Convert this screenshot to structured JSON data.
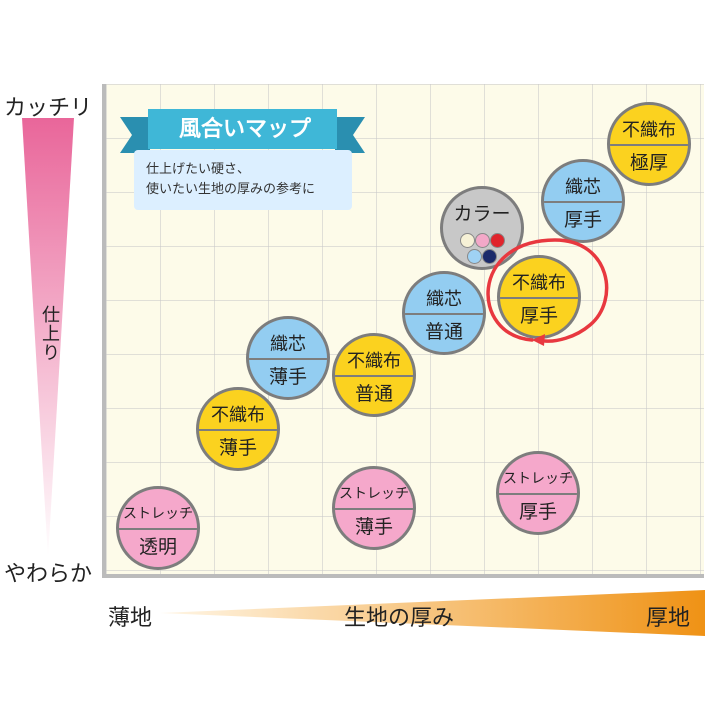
{
  "y_axis": {
    "top_label": "カッチリ",
    "middle_label": "仕上り",
    "bottom_label": "やわらか",
    "gradient_colors": [
      "#e9669a",
      "#ffffff"
    ]
  },
  "x_axis": {
    "left_label": "薄地",
    "middle_label": "生地の厚み",
    "right_label": "厚地",
    "gradient_colors": [
      "#fff6e6",
      "#ef9215"
    ]
  },
  "title": {
    "text": "風合いマップ",
    "ribbon_color": "#3fb7d7"
  },
  "note": {
    "line1": "仕上げたい硬さ、",
    "line2": "使いたい生地の厚みの参考に"
  },
  "colors": {
    "nonwoven": "#fbd21f",
    "woven": "#93cdf1",
    "stretch": "#f5a8cb",
    "color_bubble": "#c8c8c8",
    "highlight_circle": "#e8383f"
  },
  "bubbles": [
    {
      "id": "nonwoven-extra-thick",
      "top": "不織布",
      "bottom": "極厚",
      "kind": "nonwoven"
    },
    {
      "id": "woven-thick",
      "top": "織芯",
      "bottom": "厚手",
      "kind": "woven"
    },
    {
      "id": "nonwoven-thick",
      "top": "不織布",
      "bottom": "厚手",
      "kind": "nonwoven"
    },
    {
      "id": "woven-normal",
      "top": "織芯",
      "bottom": "普通",
      "kind": "woven"
    },
    {
      "id": "woven-thin",
      "top": "織芯",
      "bottom": "薄手",
      "kind": "woven"
    },
    {
      "id": "nonwoven-normal",
      "top": "不織布",
      "bottom": "普通",
      "kind": "nonwoven"
    },
    {
      "id": "nonwoven-thin",
      "top": "不織布",
      "bottom": "薄手",
      "kind": "nonwoven"
    },
    {
      "id": "stretch-clear",
      "top": "ストレッチ",
      "bottom": "透明",
      "kind": "stretch"
    },
    {
      "id": "stretch-thin",
      "top": "ストレッチ",
      "bottom": "薄手",
      "kind": "stretch"
    },
    {
      "id": "stretch-thick",
      "top": "ストレッチ",
      "bottom": "厚手",
      "kind": "stretch"
    }
  ],
  "color_bubble": {
    "label": "カラー",
    "swatches": [
      "#f6f1d6",
      "#f3a8c8",
      "#e0242c",
      "#9fd2f4",
      "#1b2a6b"
    ]
  }
}
